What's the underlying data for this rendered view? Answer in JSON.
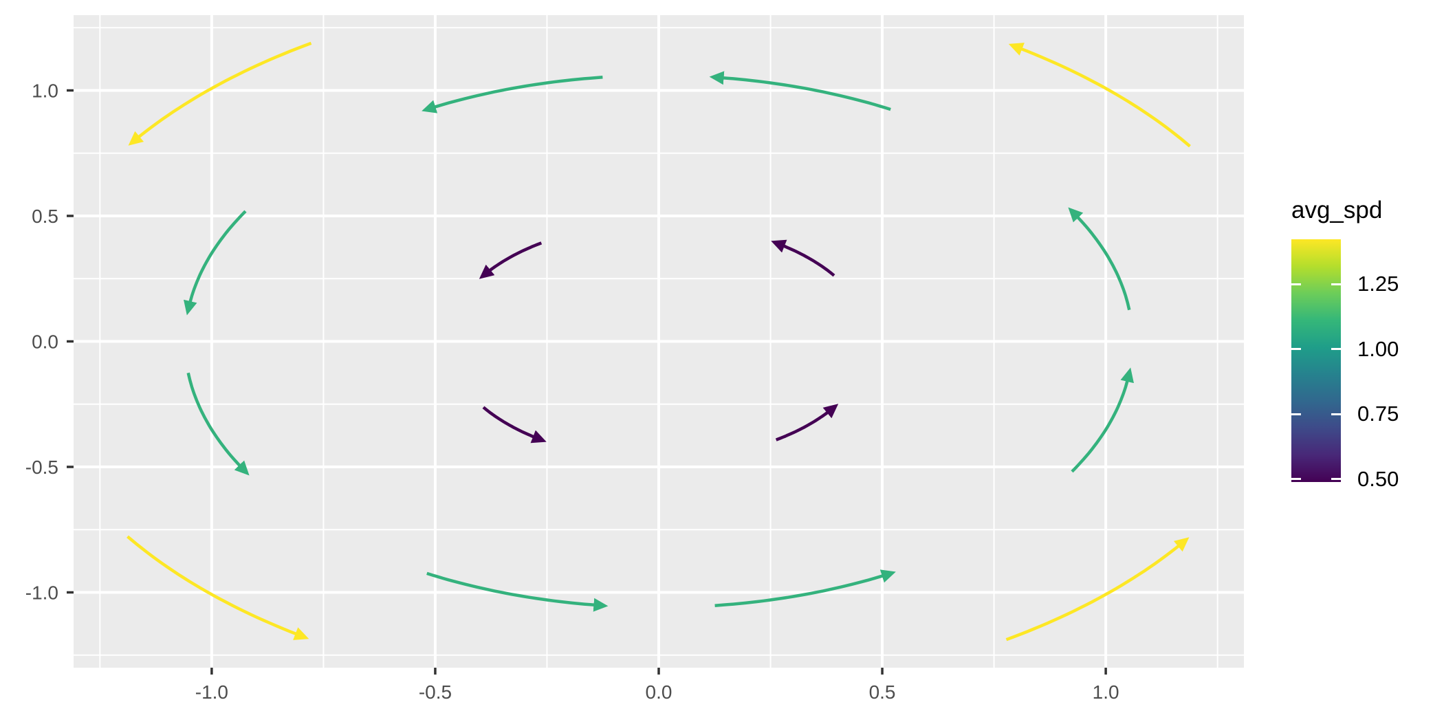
{
  "chart_data": {
    "type": "scatter",
    "subtype": "curved-arrow-vector-field",
    "title": "",
    "xlabel": "",
    "ylabel": "",
    "xlim": [
      -1.309,
      1.309
    ],
    "ylim": [
      -1.3,
      1.3
    ],
    "grid": "on",
    "panel_bg": "#EBEBEB",
    "grid_color": "#FFFFFF",
    "axis_text_color": "#4D4D4D",
    "tick_mark_color": "#333333",
    "x_ticks": [
      -1.0,
      -0.5,
      0.0,
      0.5,
      1.0
    ],
    "x_tick_labels": [
      "-1.0",
      "-0.5",
      "0.0",
      "0.5",
      "1.0"
    ],
    "y_ticks": [
      -1.0,
      -0.5,
      0.0,
      0.5,
      1.0
    ],
    "y_tick_labels": [
      "-1.0",
      "-0.5",
      "0.0",
      "0.5",
      "1.0"
    ],
    "x_minor_ticks": [
      -1.25,
      -0.75,
      -0.25,
      0.25,
      0.75,
      1.25
    ],
    "y_minor_ticks": [
      -1.25,
      -0.75,
      -0.25,
      0.25,
      0.75,
      1.25
    ],
    "arrows_note": "Circular arcs centered on origin, counterclockwise, arrowhead at end_deg",
    "arrows": [
      {
        "ring": "inner",
        "radius": 0.472,
        "start_deg": 33.8,
        "end_deg": 56.2,
        "avg_spd": 0.49,
        "color": "#440154"
      },
      {
        "ring": "inner",
        "radius": 0.472,
        "start_deg": 123.8,
        "end_deg": 146.2,
        "avg_spd": 0.49,
        "color": "#440154"
      },
      {
        "ring": "inner",
        "radius": 0.472,
        "start_deg": 213.8,
        "end_deg": 236.2,
        "avg_spd": 0.49,
        "color": "#440154"
      },
      {
        "ring": "inner",
        "radius": 0.472,
        "start_deg": 303.8,
        "end_deg": 326.2,
        "avg_spd": 0.49,
        "color": "#440154"
      },
      {
        "ring": "middle",
        "radius": 1.06,
        "start_deg": 6.8,
        "end_deg": 29.3,
        "avg_spd": 1.05,
        "color": "#34B27D"
      },
      {
        "ring": "middle",
        "radius": 1.06,
        "start_deg": 60.7,
        "end_deg": 83.2,
        "avg_spd": 1.05,
        "color": "#34B27D"
      },
      {
        "ring": "middle",
        "radius": 1.06,
        "start_deg": 96.8,
        "end_deg": 119.3,
        "avg_spd": 1.05,
        "color": "#34B27D"
      },
      {
        "ring": "middle",
        "radius": 1.06,
        "start_deg": 150.7,
        "end_deg": 173.2,
        "avg_spd": 1.05,
        "color": "#34B27D"
      },
      {
        "ring": "middle",
        "radius": 1.06,
        "start_deg": 186.8,
        "end_deg": 209.3,
        "avg_spd": 1.05,
        "color": "#34B27D"
      },
      {
        "ring": "middle",
        "radius": 1.06,
        "start_deg": 240.7,
        "end_deg": 263.2,
        "avg_spd": 1.05,
        "color": "#34B27D"
      },
      {
        "ring": "middle",
        "radius": 1.06,
        "start_deg": 276.8,
        "end_deg": 299.3,
        "avg_spd": 1.05,
        "color": "#34B27D"
      },
      {
        "ring": "middle",
        "radius": 1.06,
        "start_deg": 330.7,
        "end_deg": 353.2,
        "avg_spd": 1.05,
        "color": "#34B27D"
      },
      {
        "ring": "outer",
        "radius": 1.42,
        "start_deg": 33.2,
        "end_deg": 56.0,
        "avg_spd": 1.42,
        "color": "#FDE725"
      },
      {
        "ring": "outer",
        "radius": 1.42,
        "start_deg": 123.2,
        "end_deg": 146.0,
        "avg_spd": 1.42,
        "color": "#FDE725"
      },
      {
        "ring": "outer",
        "radius": 1.42,
        "start_deg": 213.2,
        "end_deg": 236.0,
        "avg_spd": 1.42,
        "color": "#FDE725"
      },
      {
        "ring": "outer",
        "radius": 1.42,
        "start_deg": 303.2,
        "end_deg": 326.0,
        "avg_spd": 1.42,
        "color": "#FDE725"
      }
    ],
    "legend": {
      "title": "avg_spd",
      "position": "right",
      "limits": [
        0.489,
        1.423
      ],
      "ticks": [
        1.25,
        1.0,
        0.75,
        0.5
      ],
      "tick_labels": [
        "1.25",
        "1.00",
        "0.75",
        "0.50"
      ],
      "viridis_stops": [
        "#440154",
        "#482878",
        "#3E4A89",
        "#31688E",
        "#26828E",
        "#1F9E89",
        "#35B779",
        "#6DCD59",
        "#B4DE2C",
        "#FDE725"
      ]
    }
  }
}
